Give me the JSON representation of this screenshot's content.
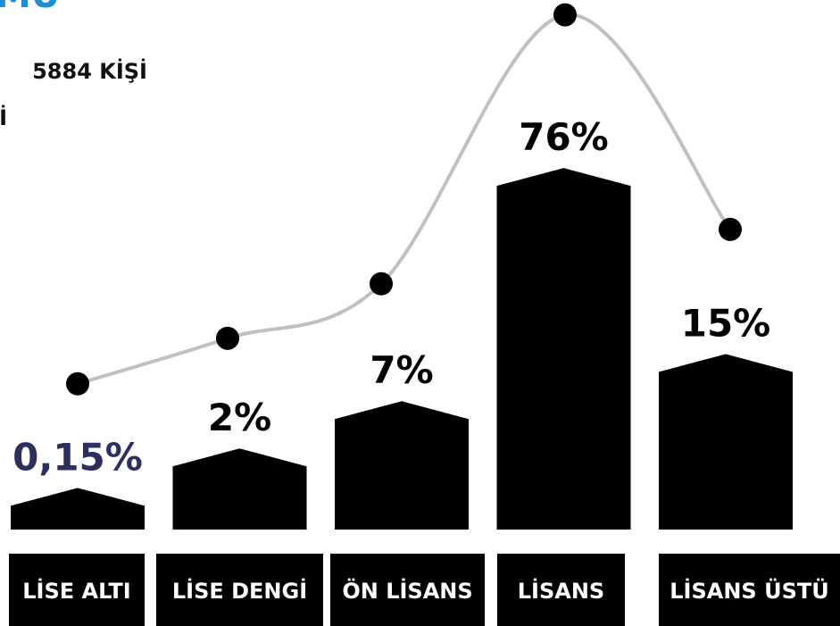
{
  "chart_data": {
    "type": "bar",
    "title": "MU",
    "subtitle": [
      "5884 KİŞİ",
      "İ"
    ],
    "categories": [
      "LİSE ALTI",
      "LİSE DENGİ",
      "ÖN LİSANS",
      "LİSANS",
      "LİSANS ÜSTÜ"
    ],
    "values": [
      0.15,
      2,
      7,
      76,
      15
    ],
    "value_labels": [
      "0,15%",
      "2%",
      "7%",
      "76%",
      "15%"
    ],
    "color": "#000000",
    "line_color": "#c0c0c0"
  }
}
